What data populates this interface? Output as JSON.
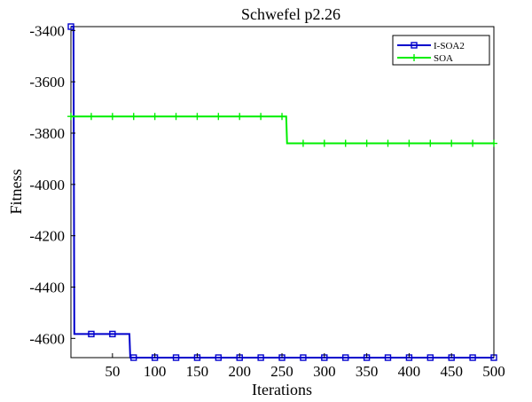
{
  "chart_data": {
    "type": "line",
    "title": "Schwefel p2.26",
    "xlabel": "Iterations",
    "ylabel": "Fitness",
    "xlim": [
      1,
      500
    ],
    "ylim": [
      -4675,
      -3385
    ],
    "xticks": [
      50,
      100,
      150,
      200,
      250,
      300,
      350,
      400,
      450,
      500
    ],
    "yticks": [
      -4600,
      -4400,
      -4200,
      -4000,
      -3800,
      -3600,
      -3400
    ],
    "grid": false,
    "legend": "top-right",
    "marker_x": [
      1,
      25,
      50,
      75,
      100,
      125,
      150,
      175,
      200,
      225,
      250,
      275,
      300,
      325,
      350,
      375,
      400,
      425,
      450,
      475,
      500
    ],
    "series": [
      {
        "name": "I-SOA2",
        "color": "#0000cc",
        "marker": "square",
        "points": [
          [
            1,
            -3385
          ],
          [
            4,
            -3385
          ],
          [
            5,
            -4583
          ],
          [
            70,
            -4583
          ],
          [
            71,
            -4675
          ],
          [
            500,
            -4675
          ]
        ]
      },
      {
        "name": "SOA",
        "color": "#00ee00",
        "marker": "plus",
        "points": [
          [
            1,
            -3735
          ],
          [
            255,
            -3735
          ],
          [
            256,
            -3840
          ],
          [
            500,
            -3840
          ]
        ]
      }
    ]
  }
}
